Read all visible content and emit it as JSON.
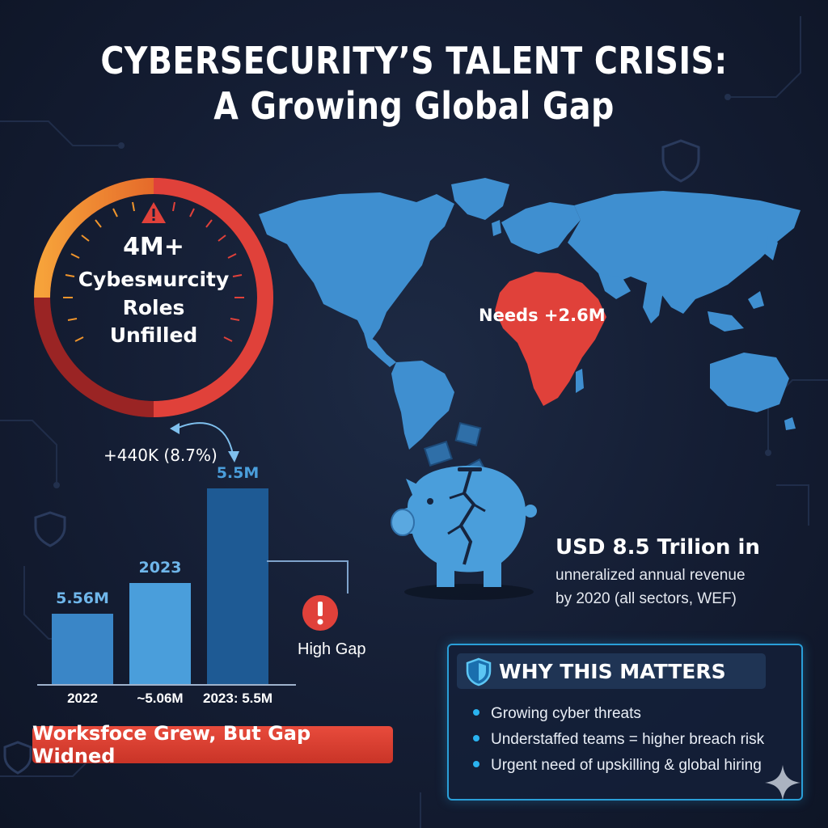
{
  "title": {
    "line1": "CYBERSECURITY’S TALENT CRISIS:",
    "line2": "A Growing Global Gap"
  },
  "gauge": {
    "value": "4M+",
    "line2": "Cybesмurcity",
    "line3": "Roles",
    "line4": "Unfilled",
    "icon": "warning-triangle-icon",
    "colors": {
      "orange": "#f0952c",
      "red": "#e0413a",
      "dark_red": "#8c2222"
    }
  },
  "map": {
    "region_label": "Needs +2.6M",
    "land_color": "#3f8fd0",
    "highlight_color": "#e0413a"
  },
  "bars_section": {
    "growth_label": "+440K (8.7%)",
    "gap_label": "High Gap",
    "banner": "Worksfoce Grew, But Gap Widned"
  },
  "chart_data": {
    "type": "bar",
    "categories": [
      "2022",
      "~5.06M",
      "2023: 5.5M"
    ],
    "data_labels": [
      "5.56M",
      "2023",
      "5.5M"
    ],
    "values": [
      3.5,
      5.0,
      9.7
    ],
    "colors": [
      "#3a86c7",
      "#4a9edb",
      "#1e5a94"
    ]
  },
  "revenue": {
    "line1": "USD 8.5 Trilion in",
    "line2": "unneralized annual revenue",
    "line3": "by 2020 (all sectors, WEF)"
  },
  "why": {
    "title": "WHY THIS MATTERS",
    "icon": "shield-icon",
    "items": [
      "Growing cyber threats",
      "Understaffed teams = higher breach risk",
      "Urgent need of upskilling & global hiring"
    ]
  }
}
